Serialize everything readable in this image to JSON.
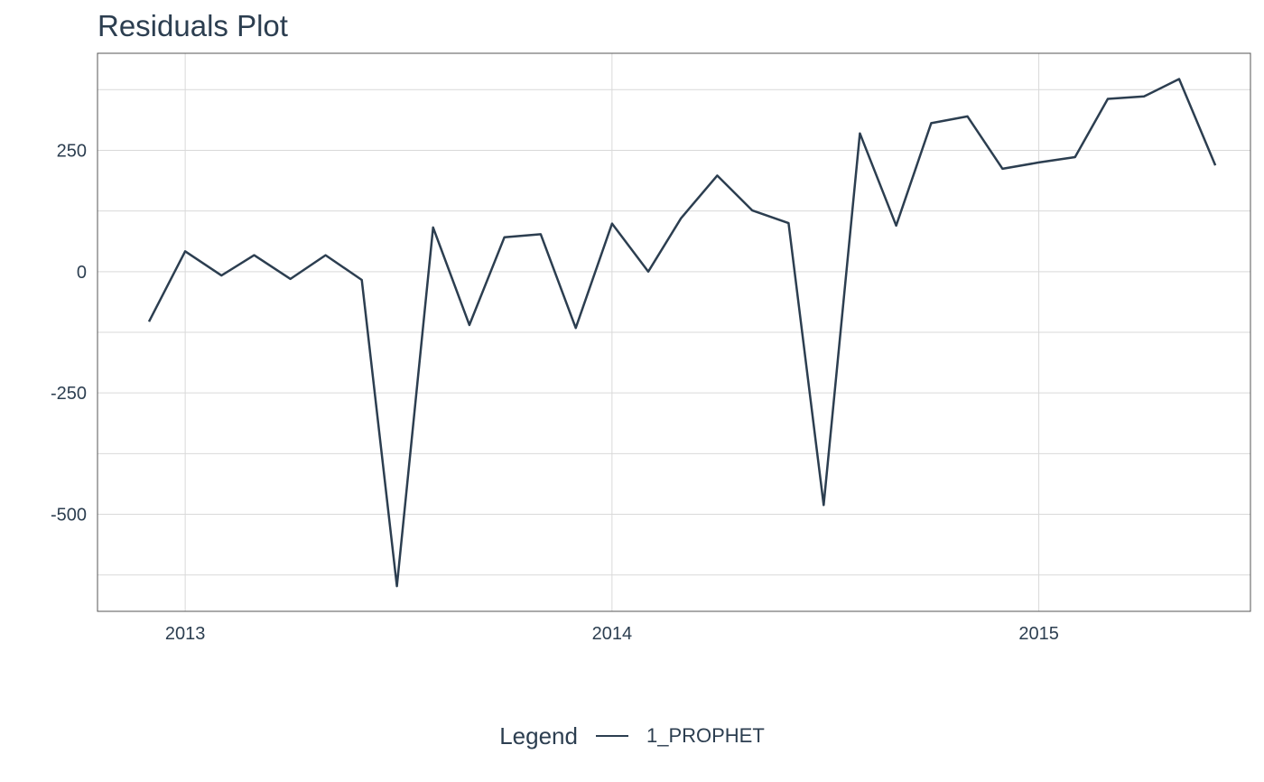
{
  "chart_data": {
    "type": "line",
    "title": "Residuals Plot",
    "xlabel": "",
    "ylabel": "",
    "x_ticks": [
      "2013",
      "2014",
      "2015"
    ],
    "y_ticks": [
      250,
      0,
      -250,
      -500
    ],
    "ylim": [
      -700,
      450
    ],
    "xlim": [
      "2012-10-18",
      "2015-07-01"
    ],
    "grid": true,
    "legend": {
      "title": "Legend",
      "position": "bottom"
    },
    "series": [
      {
        "name": "1_PROPHET",
        "color": "#2c3e50",
        "x": [
          "2012-12-01",
          "2013-01-01",
          "2013-02-01",
          "2013-03-01",
          "2013-04-01",
          "2013-05-01",
          "2013-06-01",
          "2013-07-01",
          "2013-08-01",
          "2013-09-01",
          "2013-10-01",
          "2013-11-01",
          "2013-12-01",
          "2014-01-01",
          "2014-02-01",
          "2014-03-01",
          "2014-04-01",
          "2014-05-01",
          "2014-06-01",
          "2014-07-01",
          "2014-08-01",
          "2014-09-01",
          "2014-10-01",
          "2014-11-01",
          "2014-12-01",
          "2015-01-01",
          "2015-02-01",
          "2015-03-01",
          "2015-04-01",
          "2015-05-01",
          "2015-06-01"
        ],
        "values": [
          -103,
          42,
          -8,
          34,
          -15,
          34,
          -17,
          -648,
          91,
          -110,
          71,
          77,
          -116,
          99,
          0,
          110,
          198,
          126,
          100,
          -481,
          285,
          95,
          306,
          320,
          212,
          225,
          236,
          356,
          361,
          397,
          219
        ]
      }
    ]
  }
}
